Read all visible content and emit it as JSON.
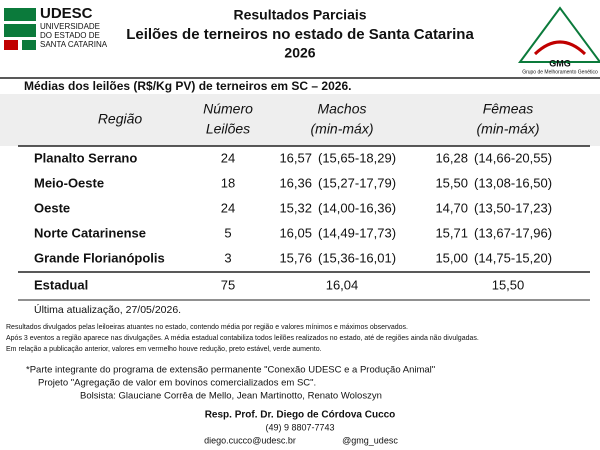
{
  "header": {
    "logo_left": {
      "name": "UDESC",
      "lines": [
        "UNIVERSIDADE",
        "DO ESTADO DE",
        "SANTA CATARINA"
      ]
    },
    "title": [
      "Resultados Parciais",
      "Leilões de terneiros no estado de Santa Catarina",
      "2026"
    ],
    "logo_right": {
      "name": "GMG",
      "caption": "Grupo de Melhoramento Genético"
    }
  },
  "subtitle": "Médias dos leilões (R$/Kg PV) de terneiros em SC – 2026.",
  "table": {
    "columns": [
      [
        "Região"
      ],
      [
        "Número",
        "Leilões"
      ],
      [
        "Machos",
        "(min-máx)"
      ],
      [
        "Fêmeas",
        "(min-máx)"
      ]
    ],
    "rows": [
      {
        "region": "Planalto Serrano",
        "count": "24",
        "machos": "16,57",
        "machos_range": "(15,65-18,29)",
        "machos_color": "#111111",
        "femeas": "16,28",
        "femeas_range": "(14,66-20,55)",
        "femeas_color": "#111111"
      },
      {
        "region": "Meio-Oeste",
        "count": "18",
        "machos": "16,36",
        "machos_range": "(15,27-17,79)",
        "machos_color": "#111111",
        "femeas": "15,50",
        "femeas_range": "(13,08-16,50)",
        "femeas_color": "#111111"
      },
      {
        "region": "Oeste",
        "count": "24",
        "machos": "15,32",
        "machos_range": "(14,00-16,36)",
        "machos_color": "#c00000",
        "femeas": "14,70",
        "femeas_range": "(13,50-17,23)",
        "femeas_color": "#c00000"
      },
      {
        "region": "Norte Catarinense",
        "count": "5",
        "machos": "16,05",
        "machos_range": "(14,49-17,73)",
        "machos_color": "#c00000",
        "femeas": "15,71",
        "femeas_range": "(13,67-17,96)",
        "femeas_color": "#c00000"
      },
      {
        "region": "Grande Florianópolis",
        "count": "3",
        "machos": "15,76",
        "machos_range": "(15,36-16,01)",
        "machos_color": "#111111",
        "femeas": "15,00",
        "femeas_range": "(14,75-15,20)",
        "femeas_color": "#111111"
      }
    ],
    "total": {
      "region": "Estadual",
      "count": "75",
      "machos": "16,04",
      "machos_color": "#c00000",
      "femeas": "15,50",
      "femeas_color": "#c00000"
    }
  },
  "updated": "Última atualização, 27/05/2026.",
  "notes": [
    "Resultados divulgados pelas leiloeiras atuantes no estado, contendo média por região e valores mínimos e máximos observados.",
    "Após 3 eventos a região aparece nas divulgações. A média estadual contabiliza todos leilões realizados no estado, até de regiões ainda não divulgadas.",
    "Em relação a publicação anterior, valores em vermelho houve redução, preto estável, verde aumento."
  ],
  "project": [
    "*Parte integrante do programa de extensão permanente \"Conexão UDESC e a Produção Animal\"",
    "Projeto \"Agregação de valor em bovinos comercializados em SC\".",
    "Bolsista: Glauciane Corrêa de Mello, Jean Martinotto, Renato Woloszyn"
  ],
  "contact": {
    "resp": "Resp. Prof. Dr. Diego de Córdova Cucco",
    "phone": "(49) 9 8807-7743",
    "email": "diego.cucco@udesc.br",
    "social": "@gmg_udesc"
  }
}
